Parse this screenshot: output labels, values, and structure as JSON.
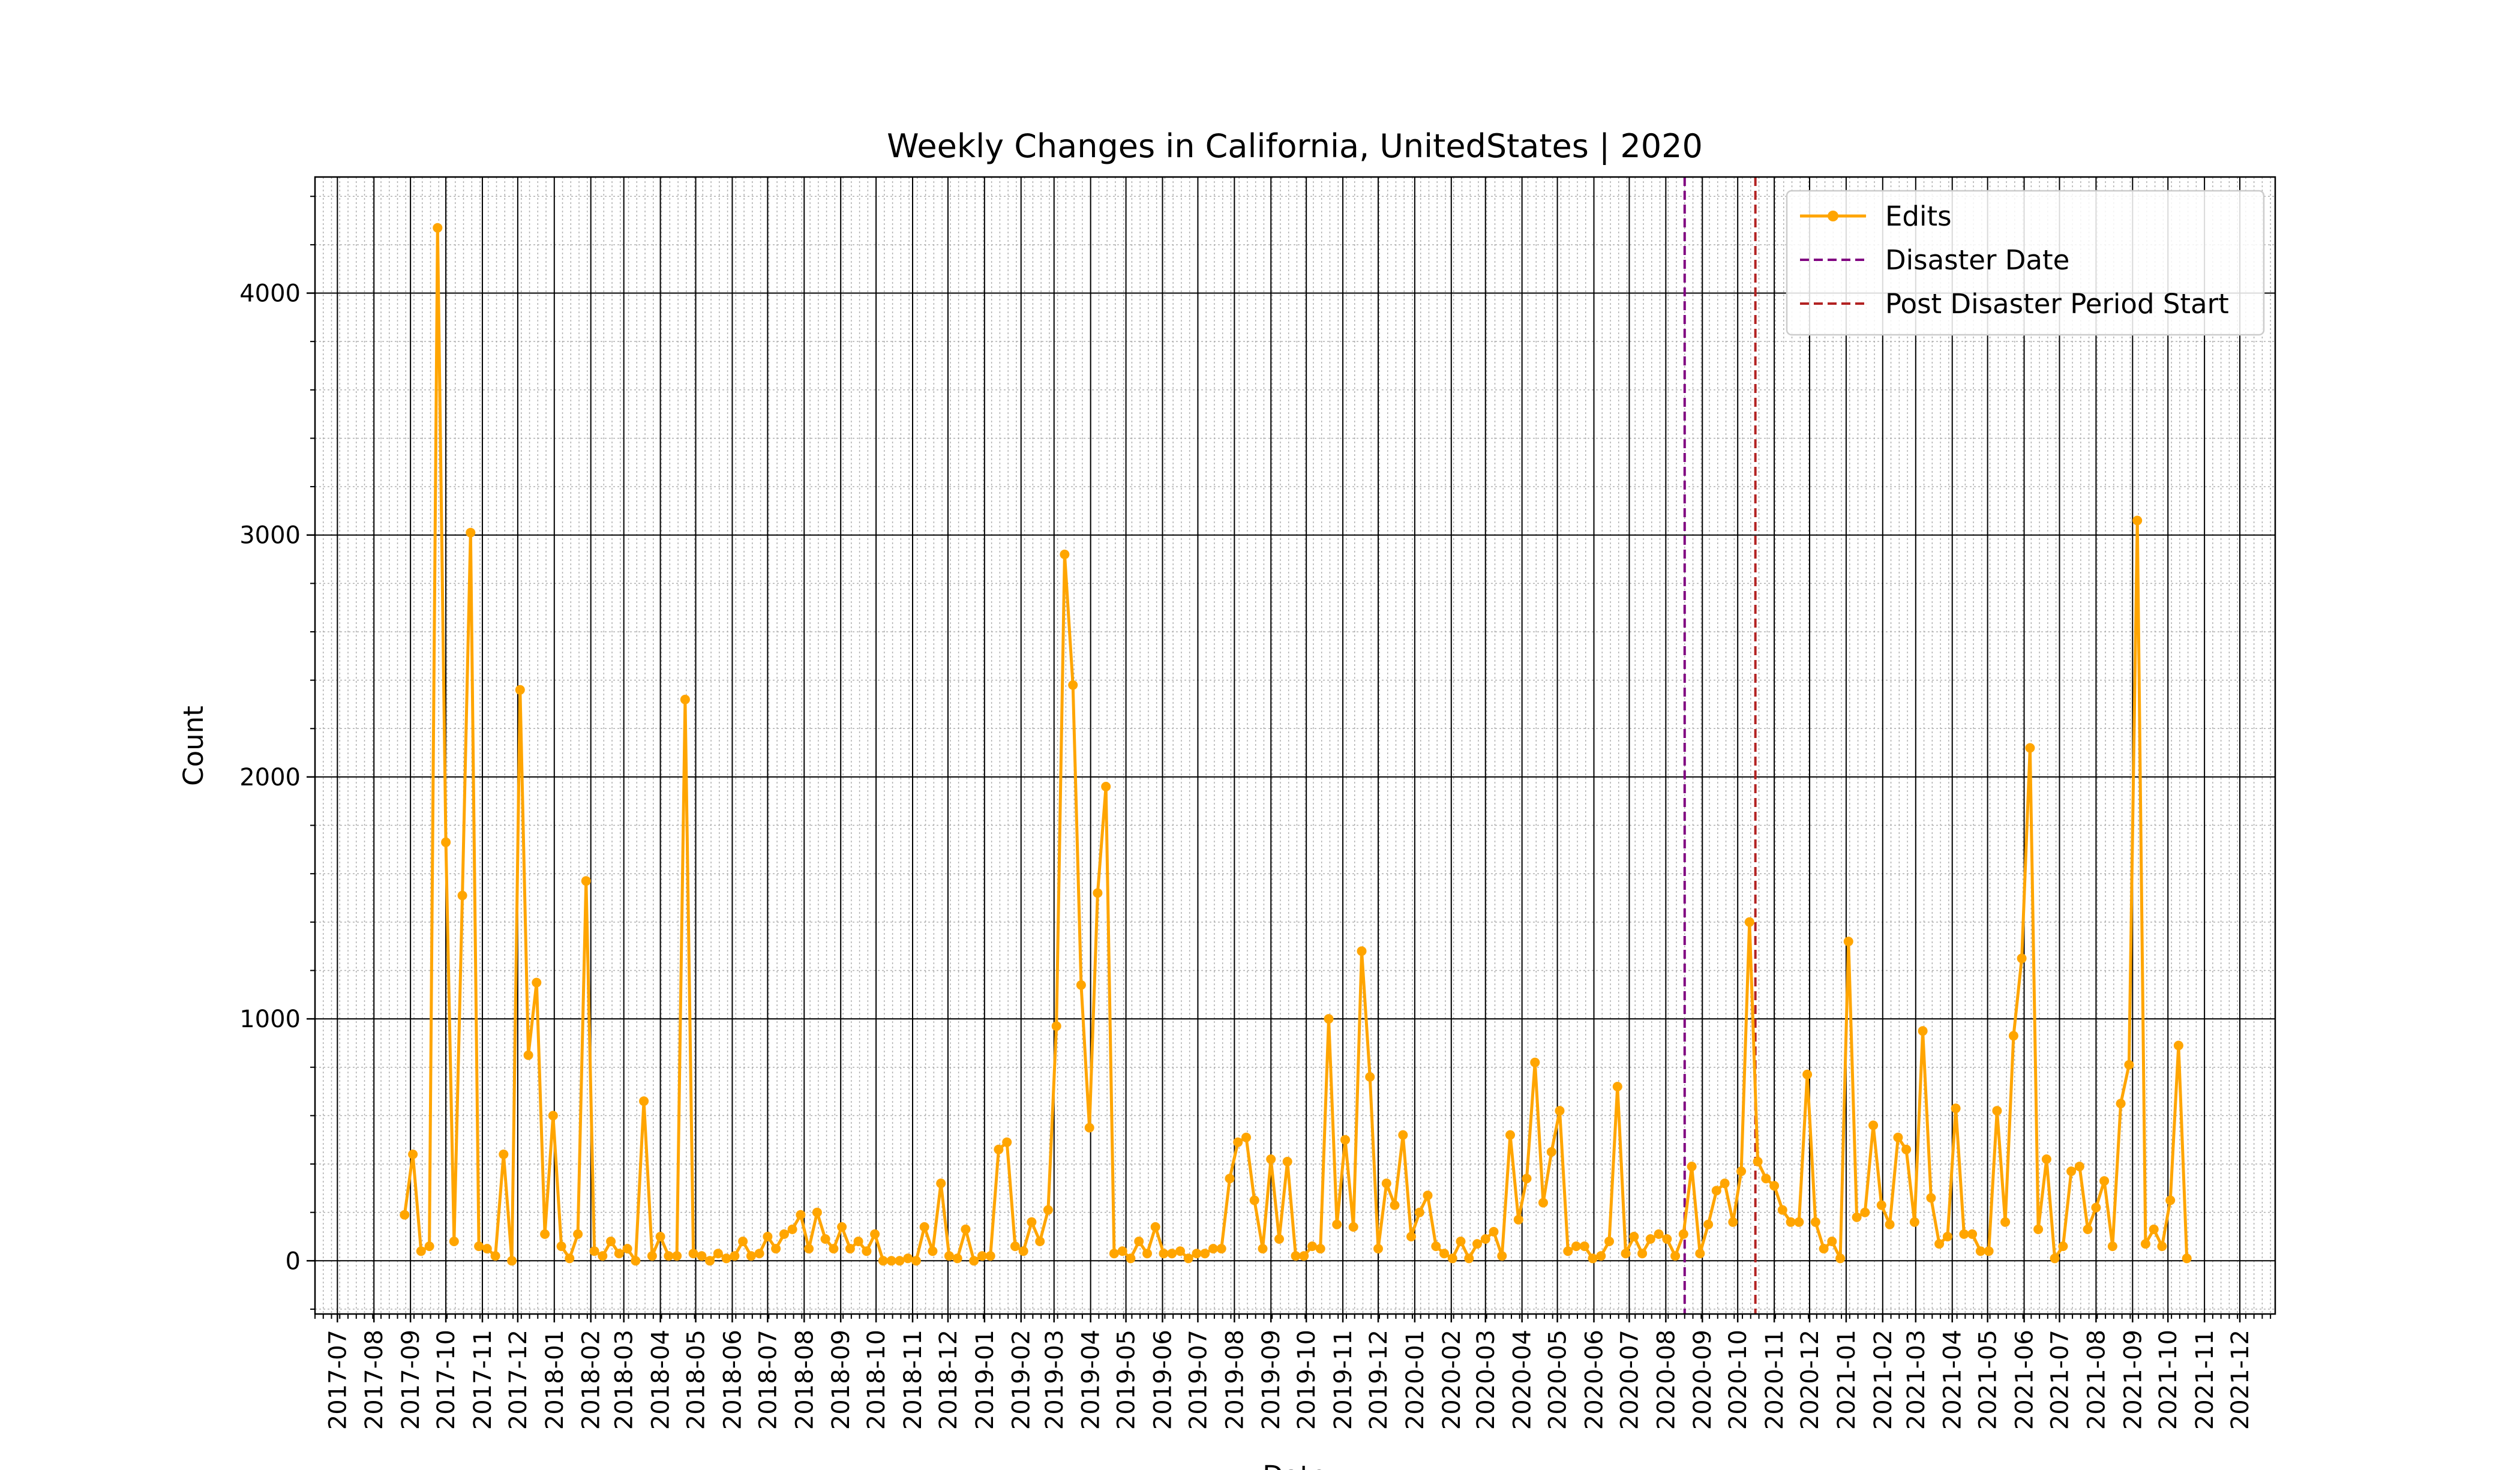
{
  "chart_data": {
    "type": "line",
    "title": "Weekly Changes in California, UnitedStates | 2020",
    "xlabel": "Date",
    "ylabel": "Count",
    "xlim": [
      "2017-06-12",
      "2021-12-31"
    ],
    "ylim": [
      -220,
      4480
    ],
    "yticks": [
      0,
      1000,
      2000,
      3000,
      4000
    ],
    "grid": true,
    "legend_position": "top-right",
    "colors": {
      "series": "#ffa500",
      "disaster": "#800080",
      "post": "#b22222",
      "grid_major": "#000000",
      "grid_minor": "#b0b0b0"
    },
    "xticks": [
      "2017-07",
      "2017-08",
      "2017-09",
      "2017-10",
      "2017-11",
      "2017-12",
      "2018-01",
      "2018-02",
      "2018-03",
      "2018-04",
      "2018-05",
      "2018-06",
      "2018-07",
      "2018-08",
      "2018-09",
      "2018-10",
      "2018-11",
      "2018-12",
      "2019-01",
      "2019-02",
      "2019-03",
      "2019-04",
      "2019-05",
      "2019-06",
      "2019-07",
      "2019-08",
      "2019-09",
      "2019-10",
      "2019-11",
      "2019-12",
      "2020-01",
      "2020-02",
      "2020-03",
      "2020-04",
      "2020-05",
      "2020-06",
      "2020-07",
      "2020-08",
      "2020-09",
      "2020-10",
      "2020-11",
      "2020-12",
      "2021-01",
      "2021-02",
      "2021-03",
      "2021-04",
      "2021-05",
      "2021-06",
      "2021-07",
      "2021-08",
      "2021-09",
      "2021-10",
      "2021-11",
      "2021-12"
    ],
    "series": [
      {
        "name": "Edits",
        "start_date": "2017-08-27",
        "interval_days": 7,
        "values": [
          190,
          440,
          40,
          60,
          4270,
          1730,
          80,
          1510,
          3010,
          60,
          50,
          20,
          440,
          0,
          2360,
          850,
          1150,
          110,
          600,
          60,
          10,
          110,
          1570,
          40,
          20,
          80,
          30,
          50,
          0,
          660,
          20,
          100,
          20,
          20,
          2320,
          30,
          20,
          0,
          30,
          10,
          20,
          80,
          20,
          30,
          100,
          50,
          110,
          130,
          190,
          50,
          200,
          90,
          50,
          140,
          50,
          80,
          40,
          110,
          0,
          0,
          0,
          10,
          0,
          140,
          40,
          320,
          20,
          10,
          130,
          0,
          20,
          20,
          460,
          490,
          60,
          40,
          160,
          80,
          210,
          970,
          2920,
          2380,
          1140,
          550,
          1520,
          1960,
          30,
          40,
          10,
          80,
          30,
          140,
          30,
          30,
          40,
          10,
          30,
          30,
          50,
          50,
          340,
          490,
          510,
          250,
          50,
          420,
          90,
          410,
          20,
          20,
          60,
          50,
          1000,
          150,
          500,
          140,
          1280,
          760,
          50,
          320,
          230,
          520,
          100,
          200,
          270,
          60,
          30,
          10,
          80,
          10,
          70,
          90,
          120,
          20,
          520,
          170,
          340,
          820,
          240,
          450,
          620,
          40,
          60,
          60,
          10,
          20,
          80,
          720,
          30,
          100,
          30,
          90,
          110,
          90,
          20,
          110,
          390,
          30,
          150,
          290,
          320,
          160,
          370,
          1400,
          410,
          340,
          310,
          210,
          160,
          160,
          770,
          160,
          50,
          80,
          10,
          1320,
          180,
          200,
          560,
          230,
          150,
          510,
          460,
          160,
          950,
          260,
          70,
          100,
          630,
          110,
          110,
          40,
          40,
          620,
          160,
          930,
          1250,
          2120,
          130,
          420,
          10,
          60,
          370,
          390,
          130,
          220,
          330,
          60,
          650,
          810,
          3060,
          70,
          130,
          60,
          250,
          890,
          10
        ]
      },
      {
        "name": "Disaster Date",
        "type": "vline",
        "x": "2020-08-17"
      },
      {
        "name": "Post Disaster Period Start",
        "type": "vline",
        "x": "2020-10-16"
      }
    ]
  }
}
